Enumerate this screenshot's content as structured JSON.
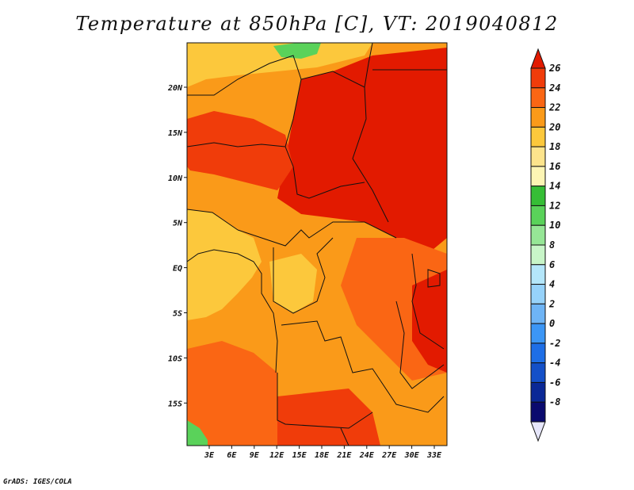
{
  "title": "Temperature at 850hPa [C], VT: 2019040812",
  "credit": "GrADS: IGES/COLA",
  "map": {
    "type": "filled-contour-map",
    "variable": "Temperature at 850hPa",
    "units": "C",
    "valid_time": "2019040812",
    "lon_ticks": [
      "3E",
      "6E",
      "9E",
      "12E",
      "15E",
      "18E",
      "21E",
      "24E",
      "27E",
      "30E",
      "33E"
    ],
    "lat_ticks": [
      "20N",
      "15N",
      "10N",
      "5N",
      "EQ",
      "5S",
      "10S",
      "15S"
    ]
  },
  "colorbar": {
    "levels": [
      "26",
      "24",
      "22",
      "20",
      "18",
      "16",
      "14",
      "12",
      "10",
      "8",
      "6",
      "4",
      "2",
      "0",
      "-2",
      "-4",
      "-6",
      "-8"
    ],
    "colors": [
      "#e21a00",
      "#f03c0a",
      "#fa6614",
      "#fa9a19",
      "#fcc83c",
      "#fde48c",
      "#fdf5b4",
      "#36be36",
      "#5ad25a",
      "#96e696",
      "#c8f5c8",
      "#b4e6fa",
      "#96d2fa",
      "#6eb4f5",
      "#3c96f5",
      "#1e6ee6",
      "#1450c8",
      "#0a2896",
      "#0a0a6e",
      "#e6e6fa"
    ]
  },
  "colors": {
    "hot": "#e21a00",
    "warm": "#fa6614",
    "orange": "#fa9a19",
    "light_orange": "#fcc83c",
    "green": "#5ad25a",
    "border": "#111111"
  }
}
